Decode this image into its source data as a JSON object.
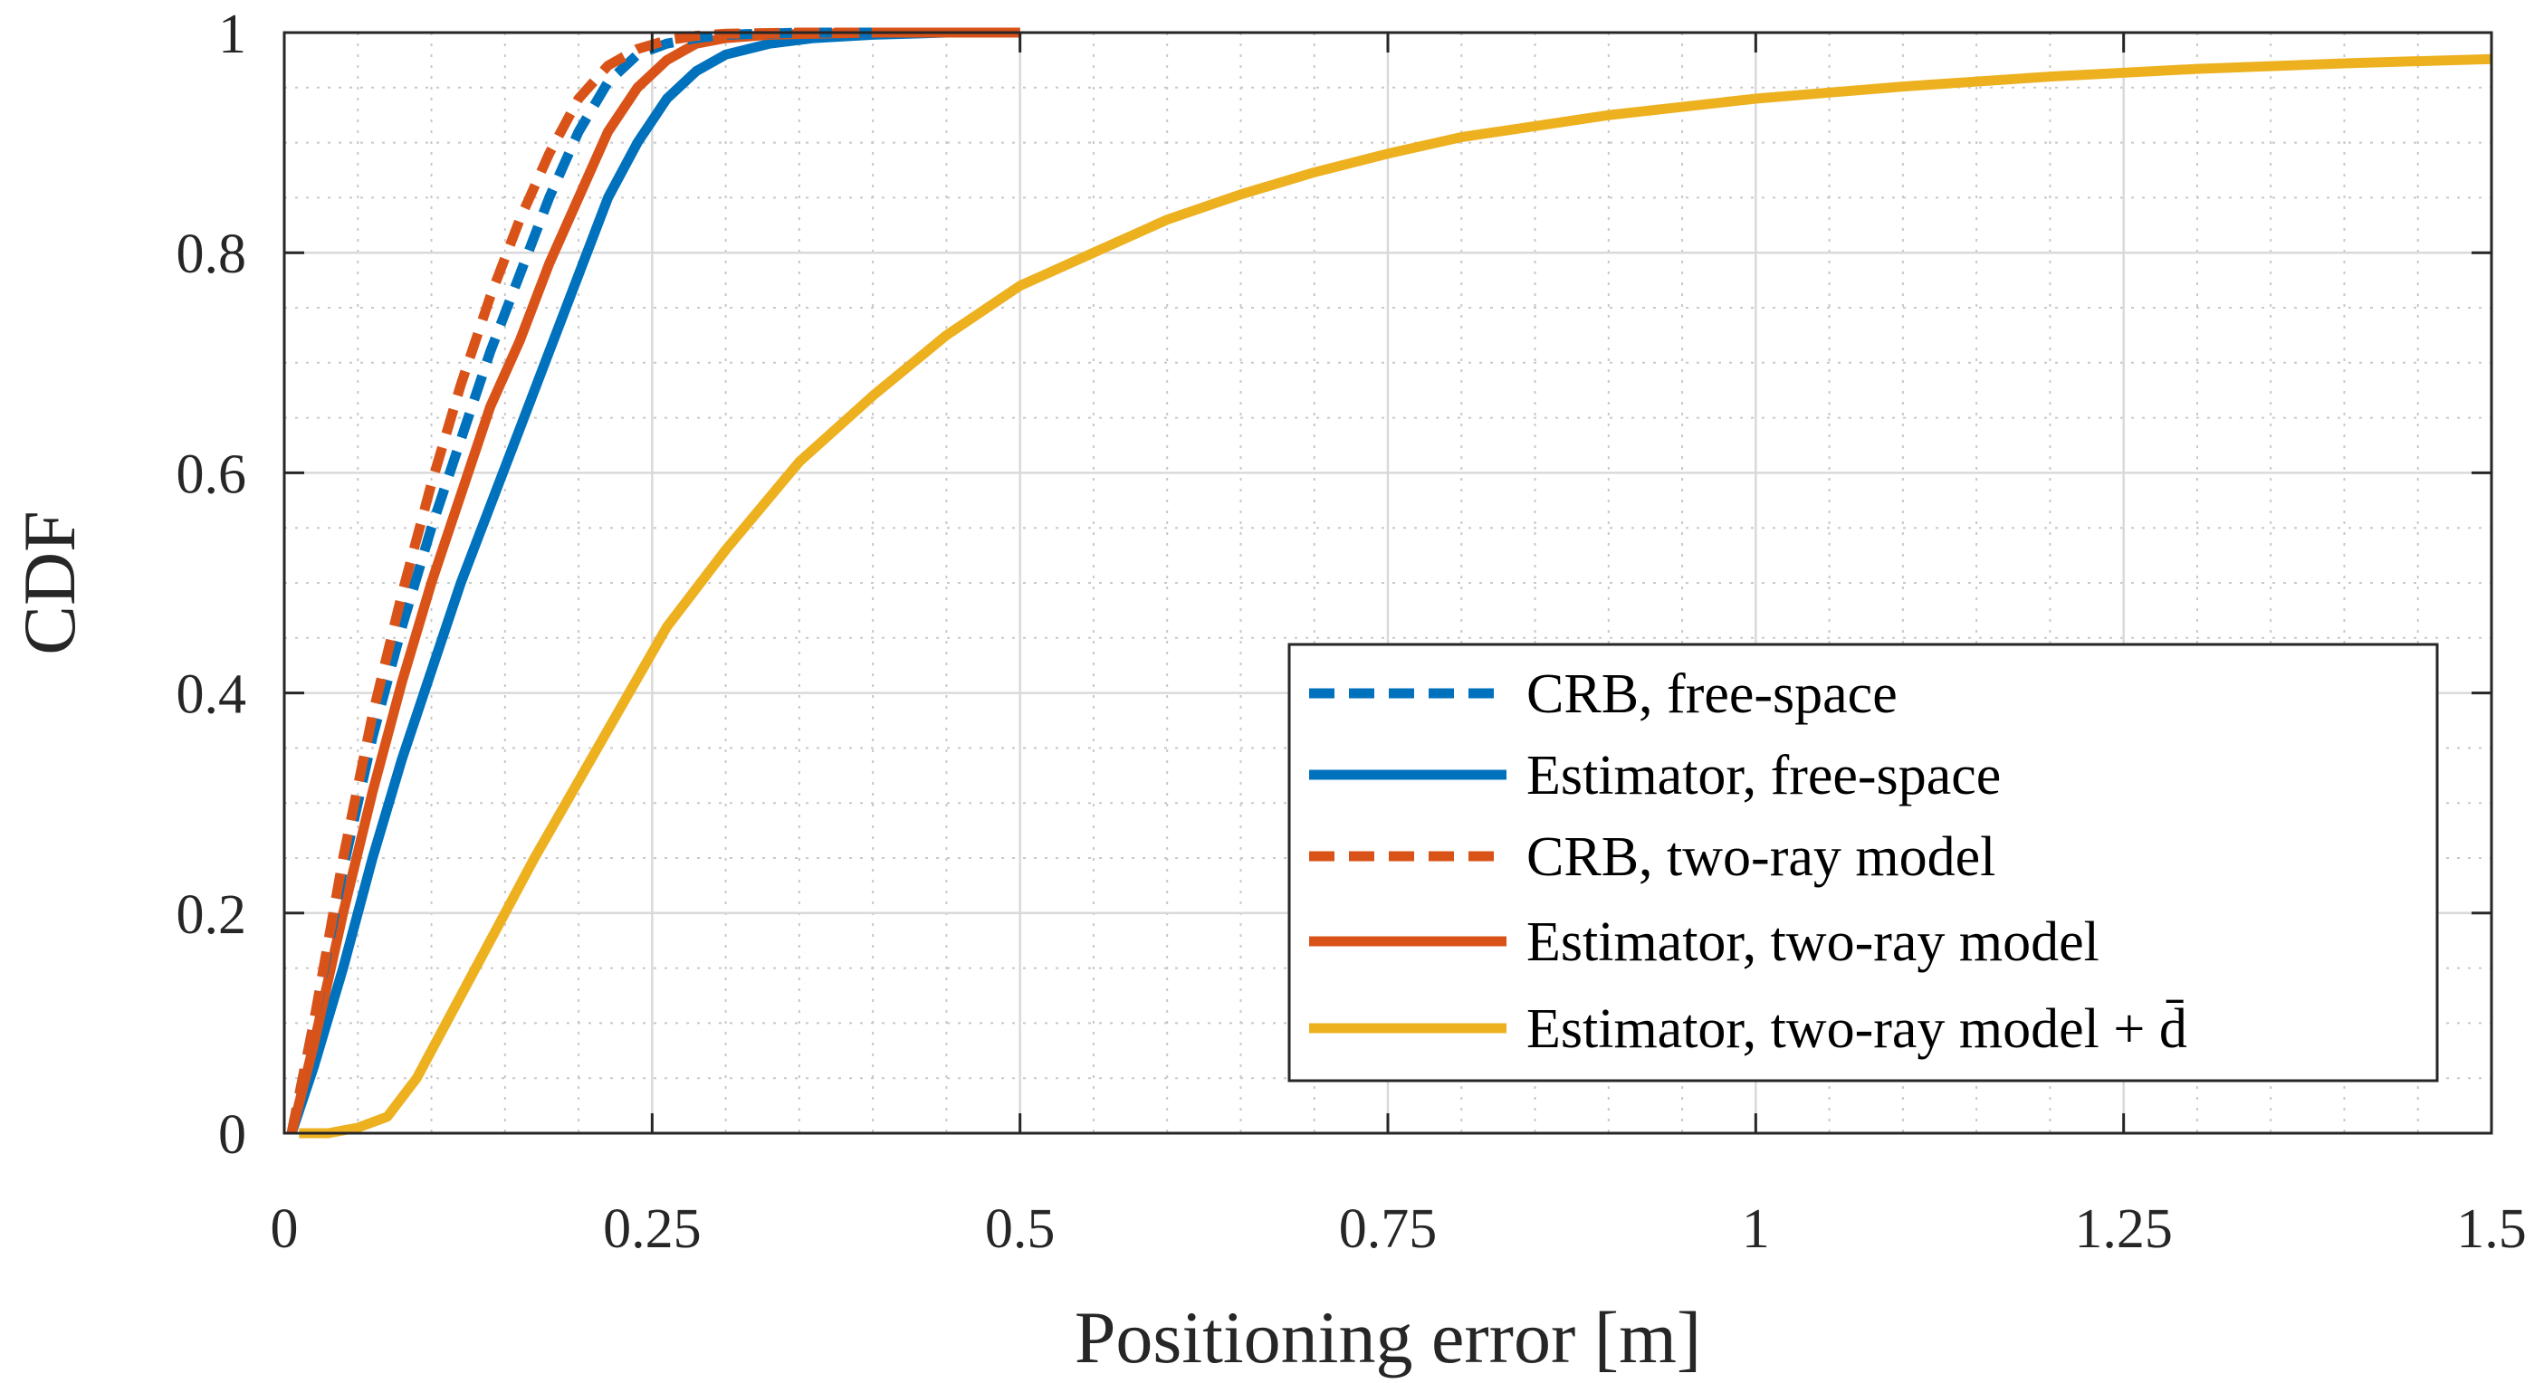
{
  "chart_data": {
    "type": "line",
    "title": "",
    "xlabel": "Positioning error [m]",
    "ylabel": "CDF",
    "xlim": [
      0,
      1.5
    ],
    "ylim": [
      0,
      1
    ],
    "grid": "major and minor (dotted)",
    "legend_position": "bottom-right",
    "x_ticks": [
      0,
      0.25,
      0.5,
      0.75,
      1,
      1.25,
      1.5
    ],
    "x_tick_labels": [
      "0",
      "0.25",
      "0.5",
      "0.75",
      "1",
      "1.25",
      "1.5"
    ],
    "y_ticks": [
      0,
      0.2,
      0.4,
      0.6,
      0.8,
      1
    ],
    "y_tick_labels": [
      "0",
      "0.2",
      "0.4",
      "0.6",
      "0.8",
      "1"
    ],
    "series": [
      {
        "name": "CRB, free-space",
        "color": "#0072BD",
        "style": "dashed",
        "x": [
          0.005,
          0.02,
          0.04,
          0.06,
          0.08,
          0.1,
          0.12,
          0.14,
          0.16,
          0.18,
          0.2,
          0.22,
          0.24,
          0.26,
          0.28,
          0.3,
          0.35,
          0.4
        ],
        "y": [
          0,
          0.1,
          0.24,
          0.36,
          0.46,
          0.55,
          0.63,
          0.71,
          0.78,
          0.85,
          0.91,
          0.955,
          0.98,
          0.99,
          0.995,
          0.998,
          1.0,
          1.0
        ]
      },
      {
        "name": "Estimator, free-space",
        "color": "#0072BD",
        "style": "solid",
        "x": [
          0.005,
          0.02,
          0.04,
          0.06,
          0.08,
          0.1,
          0.12,
          0.14,
          0.16,
          0.18,
          0.2,
          0.22,
          0.24,
          0.26,
          0.28,
          0.3,
          0.33,
          0.36,
          0.4,
          0.45,
          0.5
        ],
        "y": [
          0,
          0.06,
          0.15,
          0.25,
          0.34,
          0.42,
          0.5,
          0.57,
          0.64,
          0.71,
          0.78,
          0.85,
          0.9,
          0.94,
          0.965,
          0.98,
          0.99,
          0.995,
          0.998,
          1.0,
          1.0
        ]
      },
      {
        "name": "CRB, two-ray model",
        "color": "#D95319",
        "style": "dashed",
        "x": [
          0.005,
          0.02,
          0.04,
          0.06,
          0.08,
          0.1,
          0.12,
          0.14,
          0.16,
          0.18,
          0.2,
          0.22,
          0.24,
          0.26,
          0.28,
          0.3,
          0.35,
          0.4
        ],
        "y": [
          0,
          0.1,
          0.25,
          0.38,
          0.49,
          0.59,
          0.68,
          0.76,
          0.83,
          0.89,
          0.94,
          0.97,
          0.985,
          0.993,
          0.997,
          0.999,
          1.0,
          1.0
        ]
      },
      {
        "name": "Estimator, two-ray model",
        "color": "#D95319",
        "style": "solid",
        "x": [
          0.005,
          0.02,
          0.04,
          0.06,
          0.08,
          0.1,
          0.12,
          0.14,
          0.16,
          0.18,
          0.2,
          0.22,
          0.24,
          0.26,
          0.28,
          0.3,
          0.33,
          0.36,
          0.4,
          0.45,
          0.5
        ],
        "y": [
          0,
          0.08,
          0.2,
          0.31,
          0.41,
          0.5,
          0.58,
          0.66,
          0.72,
          0.79,
          0.85,
          0.91,
          0.95,
          0.975,
          0.99,
          0.995,
          0.998,
          0.999,
          1.0,
          1.0,
          1.0
        ]
      },
      {
        "name": "Estimator, two-ray model + d̄",
        "color": "#EDB120",
        "style": "solid",
        "x": [
          0.01,
          0.03,
          0.05,
          0.07,
          0.09,
          0.11,
          0.13,
          0.15,
          0.17,
          0.2,
          0.23,
          0.26,
          0.3,
          0.35,
          0.4,
          0.45,
          0.5,
          0.55,
          0.6,
          0.65,
          0.7,
          0.75,
          0.8,
          0.9,
          1.0,
          1.1,
          1.2,
          1.3,
          1.4,
          1.5
        ],
        "y": [
          0,
          0.0,
          0.005,
          0.015,
          0.05,
          0.1,
          0.15,
          0.2,
          0.25,
          0.32,
          0.39,
          0.46,
          0.53,
          0.61,
          0.67,
          0.725,
          0.77,
          0.8,
          0.83,
          0.853,
          0.873,
          0.89,
          0.905,
          0.925,
          0.94,
          0.951,
          0.96,
          0.967,
          0.972,
          0.976
        ]
      }
    ]
  }
}
